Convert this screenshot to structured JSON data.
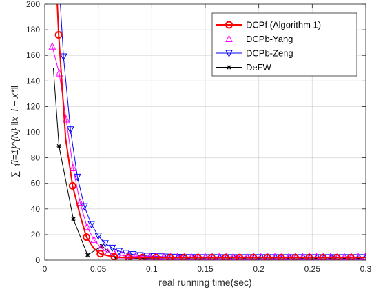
{
  "chart_data": {
    "type": "line",
    "title": "",
    "xlabel": "real running time(sec)",
    "ylabel": "∑_{i=1}^{N} ‖x_i − x*‖",
    "xlim": [
      0,
      0.3
    ],
    "ylim": [
      0,
      200
    ],
    "xticks": [
      0,
      0.05,
      0.1,
      0.15,
      0.2,
      0.25,
      0.3
    ],
    "xtick_labels": [
      "0",
      "0.05",
      "0.1",
      "0.15",
      "0.2",
      "0.25",
      "0.3"
    ],
    "yticks": [
      0,
      20,
      40,
      60,
      80,
      100,
      120,
      140,
      160,
      180,
      200
    ],
    "yticksLabels": [
      "0",
      "20",
      "40",
      "60",
      "80",
      "100",
      "120",
      "140",
      "160",
      "180",
      "200"
    ],
    "grid": true,
    "legend_position": "top-right",
    "series": [
      {
        "name": "DCPf (Algorithm 1)",
        "color": "#ff0000",
        "marker": "circle",
        "x": [
          0.009,
          0.013,
          0.0195,
          0.026,
          0.033,
          0.039,
          0.046,
          0.052,
          0.059,
          0.065,
          0.072,
          0.078,
          0.085,
          0.091,
          0.098,
          0.104,
          0.111,
          0.117,
          0.124,
          0.13,
          0.137,
          0.143,
          0.15,
          0.156,
          0.163,
          0.169,
          0.176,
          0.182,
          0.189,
          0.195,
          0.202,
          0.208,
          0.215,
          0.221,
          0.228,
          0.234,
          0.241,
          0.247,
          0.254,
          0.26,
          0.267,
          0.273,
          0.28,
          0.286,
          0.293,
          0.3
        ],
        "y": [
          250,
          176,
          95,
          58,
          35,
          18,
          9,
          5,
          3.5,
          2.6,
          2.1,
          2,
          2,
          2,
          2,
          2,
          2,
          2,
          2,
          2,
          2,
          2,
          2,
          2,
          2,
          2,
          2,
          2,
          2,
          2,
          2,
          2,
          2,
          2,
          2,
          2,
          2,
          2,
          2,
          2,
          2,
          2,
          2,
          2,
          2,
          2
        ],
        "marker_x": [
          0.013,
          0.026,
          0.039,
          0.052,
          0.065,
          0.078,
          0.091,
          0.104,
          0.117,
          0.13,
          0.143,
          0.156,
          0.169,
          0.182,
          0.195,
          0.208,
          0.221,
          0.234,
          0.247,
          0.26,
          0.273,
          0.286
        ]
      },
      {
        "name": "DCPb-Yang",
        "color": "#ff00ff",
        "marker": "triangle-up",
        "x": [
          0.007,
          0.0135,
          0.02,
          0.0265,
          0.033,
          0.0395,
          0.046,
          0.0525,
          0.059,
          0.0655,
          0.072,
          0.0785,
          0.085,
          0.0915,
          0.098,
          0.1045,
          0.111,
          0.1175,
          0.124,
          0.1305,
          0.137,
          0.1435,
          0.15,
          0.1565,
          0.163,
          0.1695,
          0.176,
          0.1825,
          0.189,
          0.1955,
          0.202,
          0.2085,
          0.215,
          0.2215,
          0.228,
          0.2345,
          0.241,
          0.2475,
          0.254,
          0.2605,
          0.267,
          0.2735,
          0.28,
          0.2865,
          0.293,
          0.2995
        ],
        "y": [
          167,
          146,
          110,
          72,
          45,
          26,
          16,
          9.5,
          6,
          4.5,
          3.8,
          3.3,
          3,
          2.8,
          2.7,
          2.6,
          2.6,
          2.5,
          2.5,
          2.5,
          2.5,
          2.5,
          2.5,
          2.5,
          2.5,
          2.5,
          2.5,
          2.5,
          2.5,
          2.5,
          2.5,
          2.5,
          2.5,
          2.5,
          2.5,
          2.5,
          2.5,
          2.5,
          2.5,
          2.5,
          2.5,
          2.5,
          2.5,
          2.5,
          2.5,
          2.5
        ]
      },
      {
        "name": "DCPb-Zeng",
        "color": "#0000ff",
        "marker": "triangle-down",
        "x": [
          0.011,
          0.0175,
          0.024,
          0.0305,
          0.037,
          0.0435,
          0.05,
          0.0565,
          0.063,
          0.0695,
          0.076,
          0.0825,
          0.089,
          0.0955,
          0.102,
          0.1085,
          0.115,
          0.1215,
          0.128,
          0.1345,
          0.141,
          0.1475,
          0.154,
          0.1605,
          0.167,
          0.1735,
          0.18,
          0.1865,
          0.193,
          0.1995,
          0.206,
          0.2125,
          0.219,
          0.2255,
          0.232,
          0.2385,
          0.245,
          0.2515,
          0.258,
          0.2645,
          0.271,
          0.2775,
          0.284,
          0.2905,
          0.297
        ],
        "y": [
          250,
          159,
          102,
          65,
          42,
          28,
          19,
          13,
          9.5,
          7,
          5.5,
          4.5,
          3.8,
          3.3,
          3,
          2.8,
          2.6,
          2.5,
          2.4,
          2.3,
          2.3,
          2.2,
          2.2,
          2.2,
          2.2,
          2.2,
          2.2,
          2.2,
          2.2,
          2.2,
          2.2,
          2.2,
          2.2,
          2.2,
          2.2,
          2.2,
          2.2,
          2.2,
          2.2,
          2.2,
          2.2,
          2.2,
          2.2,
          2.2,
          2.2
        ]
      },
      {
        "name": "DeFW",
        "color": "#000000",
        "marker": "star",
        "x": [
          0.008,
          0.0133,
          0.0267,
          0.04,
          0.0533,
          0.0667,
          0.08,
          0.0933,
          0.1067,
          0.12,
          0.1333,
          0.1467,
          0.16,
          0.1733,
          0.1867,
          0.2,
          0.2133,
          0.2267,
          0.24,
          0.2533,
          0.2667,
          0.28,
          0.2933
        ],
        "y": [
          150,
          89,
          32,
          4,
          11,
          2,
          1.5,
          1.2,
          1,
          1,
          1,
          1,
          1,
          1,
          1,
          1,
          1,
          1,
          1,
          1,
          1,
          1,
          1
        ],
        "marker_x": [
          0.0133,
          0.0267,
          0.04,
          0.0533,
          0.0667,
          0.08,
          0.0933,
          0.1067,
          0.12,
          0.1333,
          0.1467,
          0.16,
          0.1733,
          0.1867,
          0.2,
          0.2133,
          0.2267,
          0.24,
          0.2533,
          0.2667,
          0.28,
          0.2933
        ]
      }
    ]
  }
}
